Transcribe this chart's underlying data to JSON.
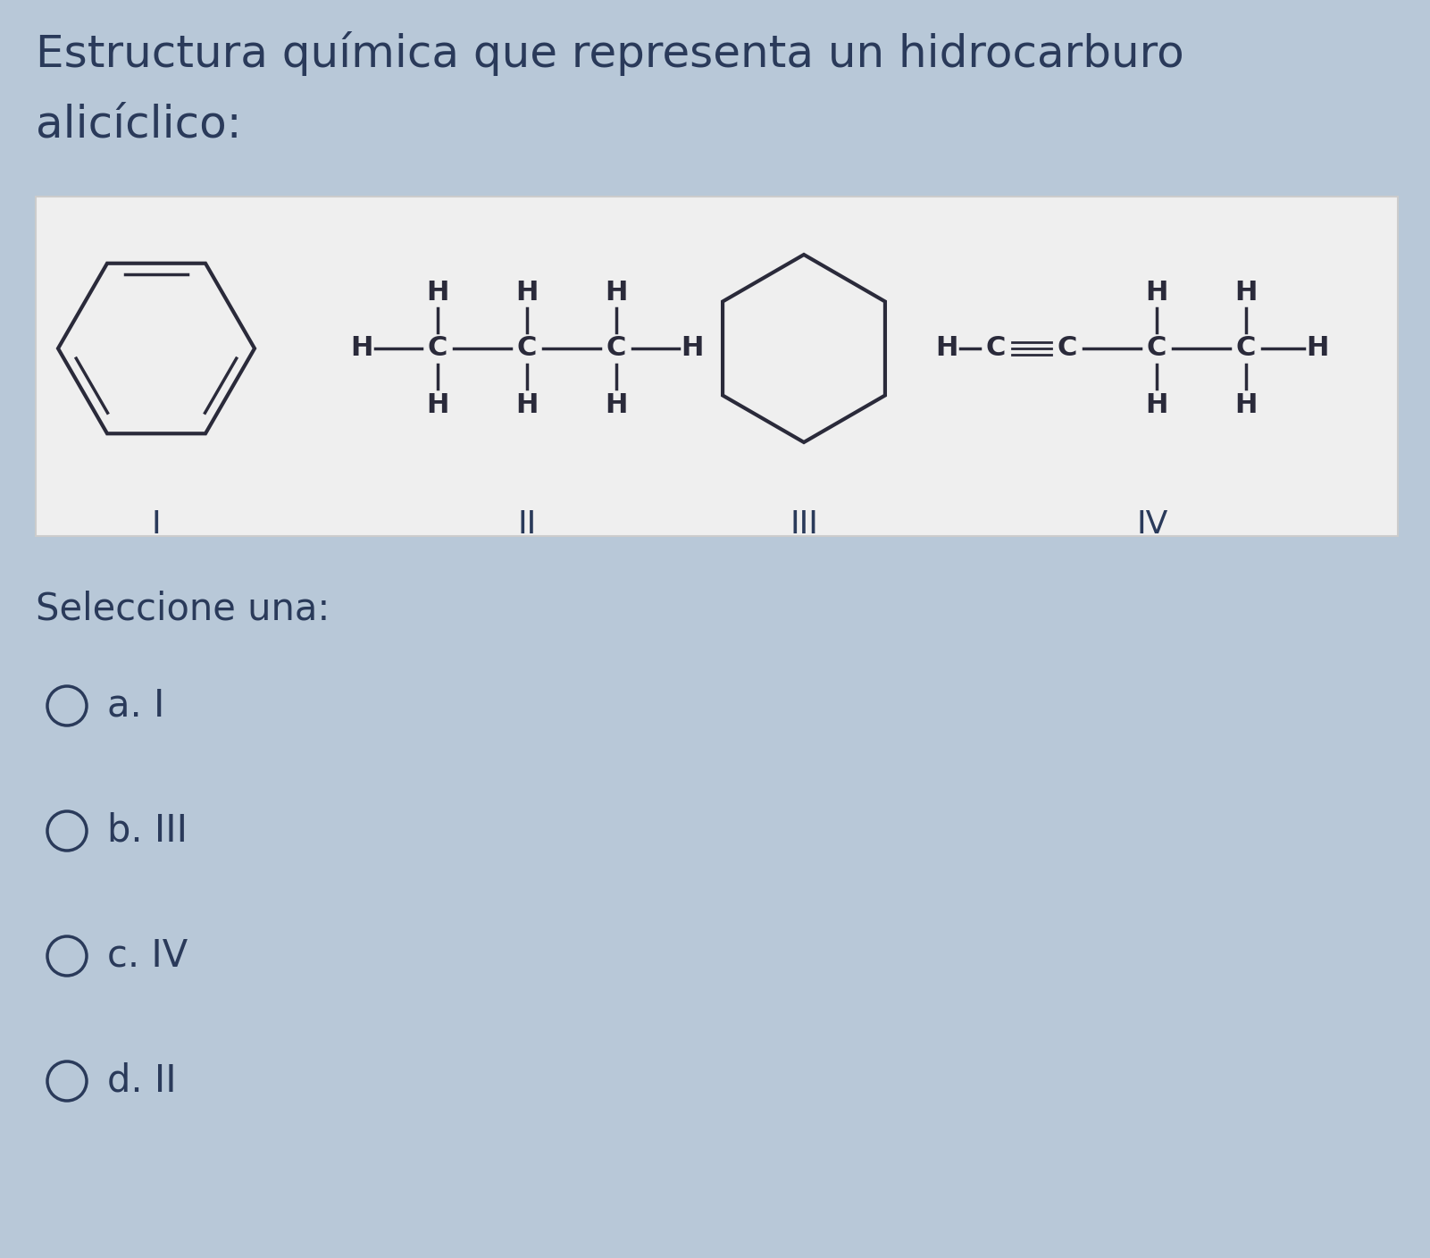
{
  "title_line1": "Estructura química que representa un hidrocarburo",
  "title_line2": "alicíclico:",
  "bg_color": "#b8c8d8",
  "panel_color": "#efefef",
  "text_color": "#2a3a5a",
  "mol_color": "#2a2a3a",
  "seleccione": "Seleccione una:",
  "options": [
    "a. I",
    "b. III",
    "c. IV",
    "d. II"
  ],
  "title_fontsize": 36,
  "label_fontsize": 26,
  "option_fontsize": 30,
  "mol_fontsize": 22,
  "struct_label_fontsize": 26
}
